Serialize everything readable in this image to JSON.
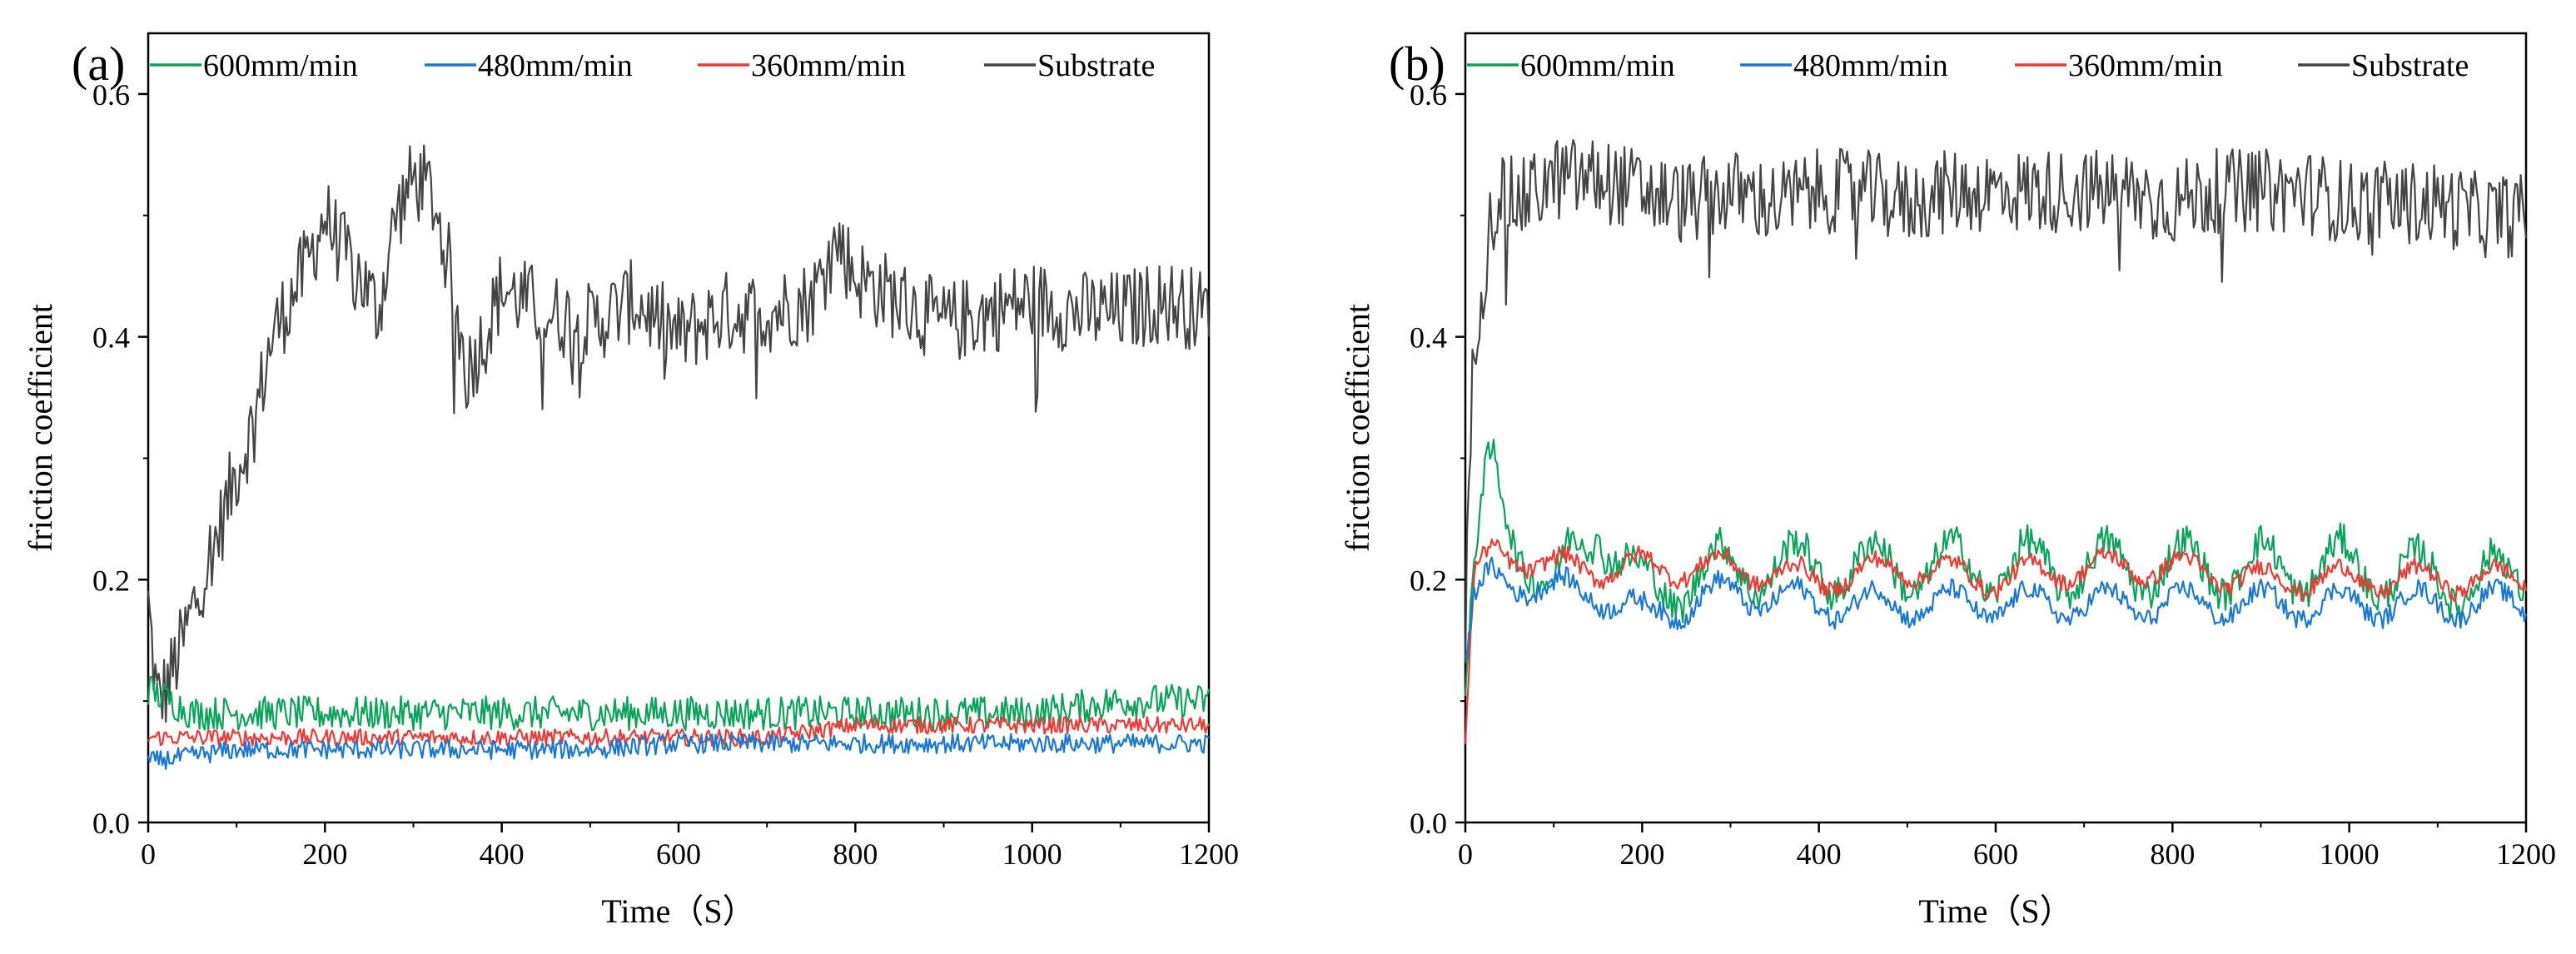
{
  "legend": [
    {
      "name": "600mm/min",
      "color": "#0ba35a"
    },
    {
      "name": "480mm/min",
      "color": "#1a78d4"
    },
    {
      "name": "360mm/min",
      "color": "#ee3a35"
    },
    {
      "name": "Substrate",
      "color": "#444444"
    }
  ],
  "chart_data": [
    {
      "type": "line",
      "panel_label": "(a)",
      "xlabel": "Time（S）",
      "ylabel": "friction coefficient",
      "xlim": [
        0,
        1200
      ],
      "ylim": [
        0,
        0.65
      ],
      "xticks": [
        0,
        200,
        400,
        600,
        800,
        1000,
        1200
      ],
      "yticks": [
        0.0,
        0.2,
        0.4,
        0.6
      ],
      "ytick_labels": [
        "0.0",
        "0.2",
        "0.4",
        "0.6"
      ],
      "legend_position": "top",
      "series": [
        {
          "name": "Substrate",
          "color": "#444444",
          "x": [
            0,
            10,
            20,
            40,
            60,
            80,
            100,
            120,
            140,
            160,
            180,
            200,
            220,
            240,
            260,
            280,
            300,
            320,
            340,
            360,
            380,
            400,
            450,
            500,
            550,
            600,
            650,
            700,
            750,
            780,
            800,
            850,
            900,
            950,
            1000,
            1050,
            1100,
            1150,
            1200
          ],
          "y": [
            0.18,
            0.1,
            0.11,
            0.15,
            0.2,
            0.24,
            0.29,
            0.33,
            0.4,
            0.43,
            0.46,
            0.5,
            0.47,
            0.45,
            0.42,
            0.5,
            0.53,
            0.52,
            0.46,
            0.37,
            0.4,
            0.44,
            0.42,
            0.41,
            0.43,
            0.4,
            0.42,
            0.42,
            0.43,
            0.48,
            0.45,
            0.43,
            0.41,
            0.42,
            0.43,
            0.42,
            0.42,
            0.43,
            0.42
          ]
        },
        {
          "name": "600mm/min",
          "color": "#0ba35a",
          "x": [
            0,
            50,
            100,
            200,
            300,
            400,
            500,
            600,
            700,
            800,
            900,
            1000,
            1100,
            1200
          ],
          "y": [
            0.11,
            0.09,
            0.09,
            0.09,
            0.09,
            0.09,
            0.09,
            0.09,
            0.09,
            0.09,
            0.09,
            0.09,
            0.1,
            0.1
          ]
        },
        {
          "name": "360mm/min",
          "color": "#ee3a35",
          "x": [
            0,
            100,
            200,
            300,
            400,
            500,
            600,
            700,
            800,
            900,
            1000,
            1100,
            1200
          ],
          "y": [
            0.07,
            0.07,
            0.07,
            0.07,
            0.07,
            0.07,
            0.07,
            0.07,
            0.08,
            0.08,
            0.08,
            0.08,
            0.08
          ]
        },
        {
          "name": "480mm/min",
          "color": "#1a78d4",
          "x": [
            0,
            100,
            200,
            300,
            400,
            500,
            600,
            700,
            800,
            900,
            1000,
            1100,
            1200
          ],
          "y": [
            0.05,
            0.06,
            0.06,
            0.06,
            0.06,
            0.06,
            0.065,
            0.065,
            0.065,
            0.065,
            0.065,
            0.065,
            0.065
          ]
        }
      ]
    },
    {
      "type": "line",
      "panel_label": "(b)",
      "xlabel": "Time（S）",
      "ylabel": "friction coefficient",
      "xlim": [
        0,
        1200
      ],
      "ylim": [
        0,
        0.65
      ],
      "xticks": [
        0,
        200,
        400,
        600,
        800,
        1000,
        1200
      ],
      "yticks": [
        0.0,
        0.2,
        0.4,
        0.6
      ],
      "ytick_labels": [
        "0.0",
        "0.2",
        "0.4",
        "0.6"
      ],
      "legend_position": "top",
      "series": [
        {
          "name": "Substrate",
          "color": "#444444",
          "x": [
            0,
            5,
            10,
            20,
            30,
            40,
            60,
            80,
            100,
            150,
            200,
            250,
            300,
            350,
            400,
            450,
            500,
            550,
            600,
            650,
            700,
            750,
            800,
            850,
            900,
            950,
            1000,
            1050,
            1100,
            1150,
            1200
          ],
          "y": [
            0.15,
            0.3,
            0.4,
            0.45,
            0.5,
            0.52,
            0.51,
            0.52,
            0.53,
            0.53,
            0.52,
            0.51,
            0.52,
            0.51,
            0.52,
            0.52,
            0.51,
            0.52,
            0.52,
            0.52,
            0.52,
            0.52,
            0.51,
            0.52,
            0.52,
            0.52,
            0.51,
            0.51,
            0.51,
            0.5,
            0.5
          ]
        },
        {
          "name": "600mm/min",
          "color": "#0ba35a",
          "x": [
            0,
            10,
            20,
            30,
            50,
            80,
            100,
            120,
            150,
            180,
            200,
            250,
            300,
            400,
            500,
            600,
            700,
            800,
            900,
            1000,
            1100,
            1200
          ],
          "y": [
            0.1,
            0.2,
            0.26,
            0.29,
            0.25,
            0.21,
            0.18,
            0.22,
            0.25,
            0.21,
            0.19,
            0.2,
            0.21,
            0.21,
            0.21,
            0.21,
            0.21,
            0.21,
            0.21,
            0.21,
            0.2,
            0.2
          ]
        },
        {
          "name": "360mm/min",
          "color": "#ee3a35",
          "x": [
            0,
            10,
            30,
            60,
            100,
            150,
            200,
            300,
            400,
            500,
            600,
            700,
            800,
            900,
            1000,
            1100,
            1200
          ],
          "y": [
            0.07,
            0.2,
            0.22,
            0.22,
            0.21,
            0.21,
            0.21,
            0.21,
            0.2,
            0.21,
            0.2,
            0.21,
            0.21,
            0.2,
            0.2,
            0.2,
            0.2
          ]
        },
        {
          "name": "480mm/min",
          "color": "#1a78d4",
          "x": [
            0,
            10,
            30,
            60,
            100,
            150,
            200,
            250,
            300,
            400,
            500,
            600,
            700,
            800,
            900,
            1000,
            1100,
            1200
          ],
          "y": [
            0.13,
            0.18,
            0.2,
            0.2,
            0.19,
            0.19,
            0.17,
            0.18,
            0.19,
            0.18,
            0.18,
            0.18,
            0.18,
            0.18,
            0.18,
            0.18,
            0.18,
            0.18
          ]
        }
      ]
    }
  ]
}
